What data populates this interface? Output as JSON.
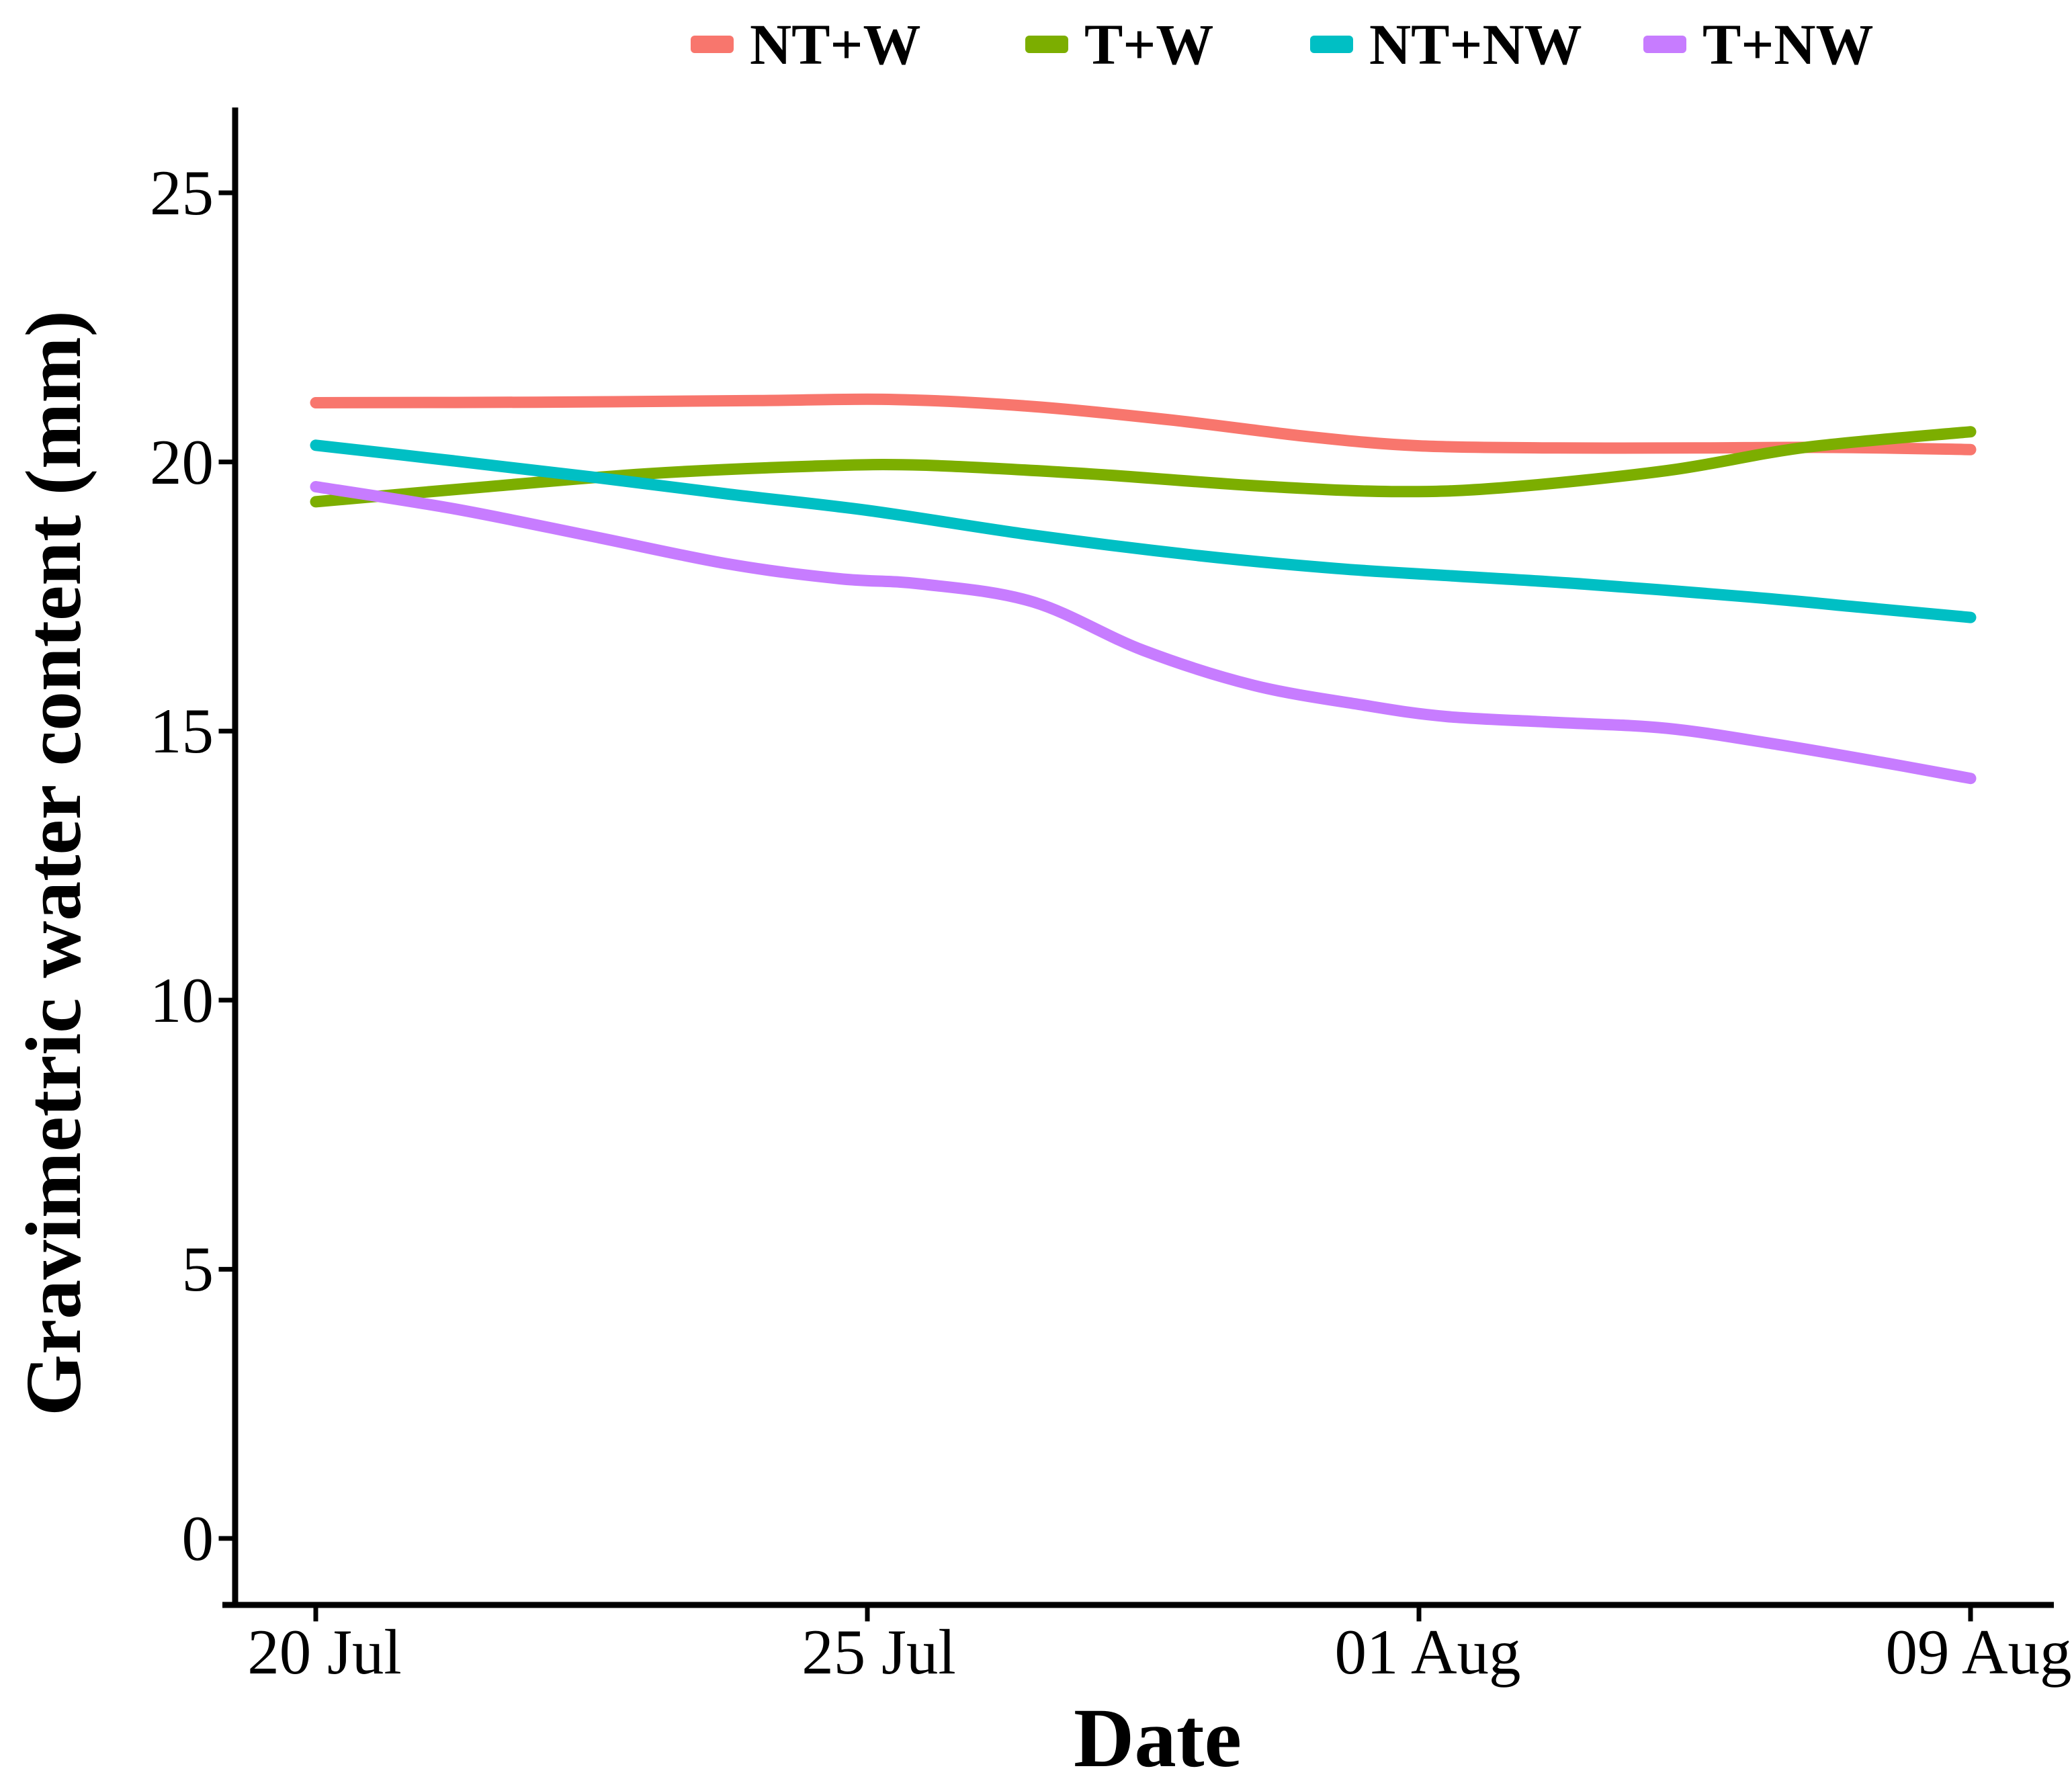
{
  "page": {
    "background": "#ffffff"
  },
  "chart_data": {
    "type": "line",
    "title": "",
    "xlabel": "Date",
    "ylabel": "Gravimetric water content (mm)",
    "x_categories": [
      "20 Jul",
      "25 Jul",
      "01 Aug",
      "09 Aug"
    ],
    "y_ticks": [
      25,
      20,
      15,
      10,
      5,
      0
    ],
    "ylim": [
      0,
      25
    ],
    "grid": "off",
    "legend_position": "top-center",
    "series": [
      {
        "name": "NT+W",
        "color": "#F8766D",
        "values": [
          21.1,
          21.15,
          20.3,
          20.2
        ],
        "smooth_points": [
          [
            0,
            21.1
          ],
          [
            0.4,
            21.11
          ],
          [
            0.8,
            21.14
          ],
          [
            1.05,
            21.16
          ],
          [
            1.3,
            21.03
          ],
          [
            1.55,
            20.78
          ],
          [
            1.8,
            20.47
          ],
          [
            2.0,
            20.3
          ],
          [
            2.25,
            20.26
          ],
          [
            2.5,
            20.26
          ],
          [
            2.75,
            20.27
          ],
          [
            3,
            20.23
          ]
        ]
      },
      {
        "name": "T+W",
        "color": "#7CAE00",
        "values": [
          19.3,
          19.95,
          19.45,
          20.55
        ],
        "smooth_points": [
          [
            0,
            19.26
          ],
          [
            0.3,
            19.53
          ],
          [
            0.6,
            19.78
          ],
          [
            0.9,
            19.92
          ],
          [
            1.1,
            19.94
          ],
          [
            1.4,
            19.78
          ],
          [
            1.7,
            19.56
          ],
          [
            1.95,
            19.45
          ],
          [
            2.15,
            19.52
          ],
          [
            2.45,
            19.84
          ],
          [
            2.7,
            20.27
          ],
          [
            3,
            20.56
          ]
        ]
      },
      {
        "name": "NT+NW",
        "color": "#00BFC4",
        "values": [
          20.3,
          19.1,
          17.9,
          17.1
        ],
        "smooth_points": [
          [
            0,
            20.31
          ],
          [
            0.25,
            20.02
          ],
          [
            0.5,
            19.72
          ],
          [
            0.75,
            19.4
          ],
          [
            1.0,
            19.1
          ],
          [
            1.3,
            18.64
          ],
          [
            1.6,
            18.26
          ],
          [
            1.85,
            18.02
          ],
          [
            2.05,
            17.89
          ],
          [
            2.3,
            17.73
          ],
          [
            2.6,
            17.49
          ],
          [
            2.8,
            17.3
          ],
          [
            3,
            17.11
          ]
        ]
      },
      {
        "name": "T+NW",
        "color": "#C77CFF",
        "values": [
          19.55,
          17.75,
          15.3,
          14.1
        ],
        "smooth_points": [
          [
            0,
            19.54
          ],
          [
            0.25,
            19.13
          ],
          [
            0.5,
            18.62
          ],
          [
            0.75,
            18.1
          ],
          [
            0.95,
            17.83
          ],
          [
            1.1,
            17.73
          ],
          [
            1.3,
            17.4
          ],
          [
            1.5,
            16.5
          ],
          [
            1.7,
            15.85
          ],
          [
            1.9,
            15.48
          ],
          [
            2.05,
            15.27
          ],
          [
            2.25,
            15.16
          ],
          [
            2.45,
            15.05
          ],
          [
            2.65,
            14.75
          ],
          [
            2.85,
            14.4
          ],
          [
            3,
            14.12
          ]
        ]
      }
    ]
  }
}
